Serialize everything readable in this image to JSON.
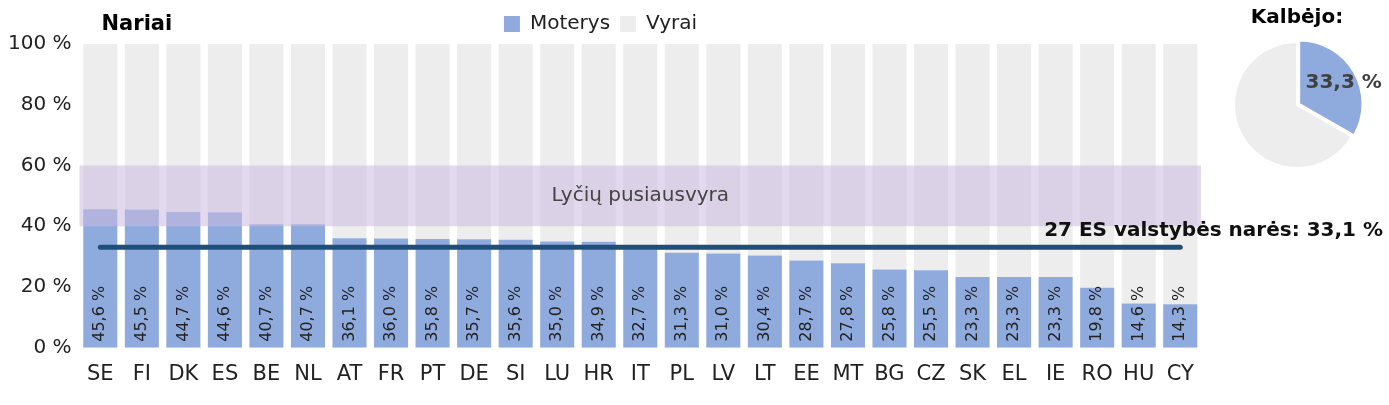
{
  "chart_data": [
    {
      "type": "bar",
      "title": "Nariai",
      "stacked": true,
      "legend": "top",
      "categories": [
        "SE",
        "FI",
        "DK",
        "ES",
        "BE",
        "NL",
        "AT",
        "FR",
        "PT",
        "DE",
        "SI",
        "LU",
        "HR",
        "IT",
        "PL",
        "LV",
        "LT",
        "EE",
        "MT",
        "BG",
        "CZ",
        "SK",
        "EL",
        "IE",
        "RO",
        "HU",
        "CY"
      ],
      "series": [
        {
          "name": "Moterys",
          "color": "#8faadc",
          "values": [
            45.6,
            45.5,
            44.7,
            44.6,
            40.7,
            40.7,
            36.1,
            36.0,
            35.8,
            35.7,
            35.6,
            35.0,
            34.9,
            32.7,
            31.3,
            31.0,
            30.4,
            28.7,
            27.8,
            25.8,
            25.5,
            23.3,
            23.3,
            23.3,
            19.8,
            14.6,
            14.3
          ],
          "value_labels": [
            "45,6 %",
            "45,5 %",
            "44,7 %",
            "44,6 %",
            "40,7 %",
            "40,7 %",
            "36,1 %",
            "36,0 %",
            "35,8 %",
            "35,7 %",
            "35,6 %",
            "35,0 %",
            "34,9 %",
            "32,7 %",
            "31,3 %",
            "31,0 %",
            "30,4 %",
            "28,7 %",
            "27,8 %",
            "25,8 %",
            "25,5 %",
            "23,3 %",
            "23,3 %",
            "23,3 %",
            "19,8 %",
            "14,6 %",
            "14,3 %"
          ]
        },
        {
          "name": "Vyrai",
          "color": "#ededed",
          "values": [
            54.4,
            54.5,
            55.3,
            55.4,
            59.3,
            59.3,
            63.9,
            64.0,
            64.2,
            64.3,
            64.4,
            65.0,
            65.1,
            67.3,
            68.7,
            69.0,
            69.6,
            71.3,
            72.2,
            74.2,
            74.5,
            76.7,
            76.7,
            76.7,
            80.2,
            85.4,
            85.7
          ]
        }
      ],
      "ylim": [
        0,
        100
      ],
      "yticks": [
        {
          "value": 0,
          "label": "0 %"
        },
        {
          "value": 20,
          "label": "20 %"
        },
        {
          "value": 40,
          "label": "40 %"
        },
        {
          "value": 60,
          "label": "60 %"
        },
        {
          "value": 80,
          "label": "80 %"
        },
        {
          "value": 100,
          "label": "100 %"
        }
      ],
      "grid": false,
      "bands": [
        {
          "axis": "y",
          "from": 40,
          "to": 60,
          "label": "Lyčių pusiausvyra",
          "color": "#cbb9e0"
        }
      ],
      "ref_lines": [
        {
          "axis": "y",
          "value": 33.1,
          "label": "27 ES valstybės narės: 33,1 %",
          "color": "#1f4e79"
        }
      ]
    },
    {
      "type": "pie",
      "title": "Kalbėjo:",
      "legend": false,
      "categories": [
        null,
        null
      ],
      "values": [
        33.3,
        66.7
      ],
      "colors": [
        "#8faadc",
        "#ededed"
      ],
      "value_labels": [
        "33,3 %",
        null
      ]
    }
  ]
}
